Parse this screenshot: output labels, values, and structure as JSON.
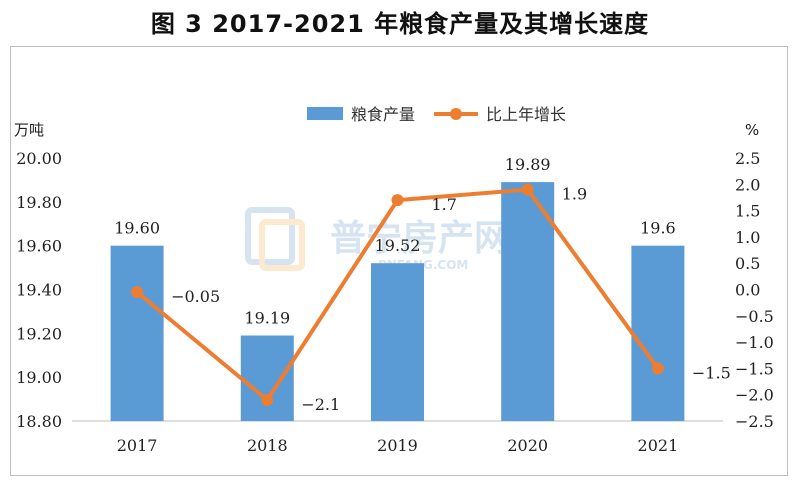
{
  "page": {
    "title": "图 3 2017-2021 年粮食产量及其增长速度"
  },
  "watermark": {
    "brand": "普宁房产网",
    "domain": "PNFANG.COM"
  },
  "chart_data": {
    "type": "bar+line",
    "title": "图 3 2017-2021 年粮食产量及其增长速度",
    "categories": [
      "2017",
      "2018",
      "2019",
      "2020",
      "2021"
    ],
    "left_axis": {
      "unit": "万吨",
      "min": 18.8,
      "max": 20.0,
      "step": 0.2,
      "ticks": [
        "20.00",
        "19.80",
        "19.60",
        "19.40",
        "19.20",
        "19.00",
        "18.80"
      ]
    },
    "right_axis": {
      "unit": "%",
      "min": -2.5,
      "max": 2.5,
      "step": 0.5,
      "ticks": [
        "2.5",
        "2.0",
        "1.5",
        "1.0",
        "0.5",
        "0.0",
        "−0.5",
        "−1.0",
        "−1.5",
        "−2.0",
        "−2.5"
      ]
    },
    "series": [
      {
        "name": "粮食产量",
        "type": "bar",
        "axis": "left",
        "color": "#5b9bd5",
        "values": [
          19.6,
          19.19,
          19.52,
          19.89,
          19.6
        ],
        "labels": [
          "19.60",
          "19.19",
          "19.52",
          "19.89",
          "19.6"
        ]
      },
      {
        "name": "比上年增长",
        "type": "line",
        "axis": "right",
        "color": "#ed7d31",
        "values": [
          -0.05,
          -2.1,
          1.7,
          1.9,
          -1.5
        ],
        "labels": [
          "−0.05",
          "−2.1",
          "1.7",
          "1.9",
          "−1.5"
        ]
      }
    ],
    "legend": "top-center"
  }
}
